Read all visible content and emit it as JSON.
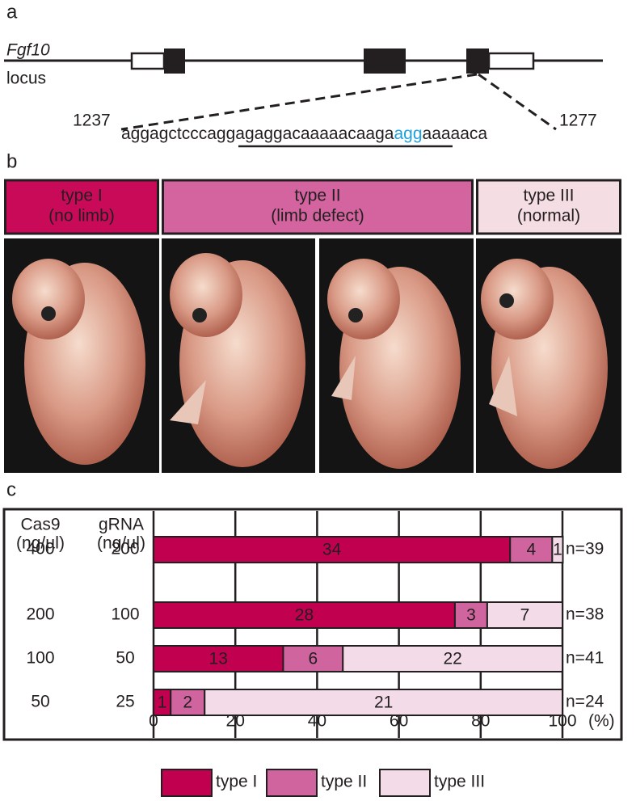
{
  "panel_labels": [
    "a",
    "b",
    "c"
  ],
  "panel_a": {
    "gene": "Fgf10",
    "locus": "locus",
    "start": "1237",
    "end": "1277",
    "sequence": {
      "prefix": "aggagctccca",
      "guide": "ggagaggacaaaaacaaga",
      "pam": "agg",
      "suffix": "aaaaaca"
    }
  },
  "panel_b": {
    "headers": [
      {
        "title": "type I",
        "subtitle": "(no limb)",
        "color": "#c80a58"
      },
      {
        "title": "type II",
        "subtitle": "(limb defect)",
        "color": "#d4649f"
      },
      {
        "title": "type III",
        "subtitle": "(normal)",
        "color": "#f5dde4"
      }
    ]
  },
  "chart_data": {
    "type": "bar",
    "orientation": "horizontal",
    "stacked": true,
    "column_headers": [
      {
        "name": "Cas9",
        "unit": "(ng/µl)"
      },
      {
        "name": "gRNA",
        "unit": "(ng/µl)"
      }
    ],
    "categories": [
      "400",
      "200",
      "100",
      "50"
    ],
    "categories2": [
      "200",
      "100",
      "50",
      "25"
    ],
    "series": [
      {
        "name": "type I",
        "color": "#c20050",
        "values": [
          87.2,
          73.7,
          31.7,
          4.2
        ],
        "counts": [
          34,
          28,
          13,
          1
        ]
      },
      {
        "name": "type II",
        "color": "#d0649e",
        "values": [
          10.3,
          7.9,
          14.6,
          8.3
        ],
        "counts": [
          4,
          3,
          6,
          2
        ]
      },
      {
        "name": "type III",
        "color": "#f3dce8",
        "values": [
          2.6,
          18.4,
          53.7,
          87.5
        ],
        "counts": [
          1,
          7,
          22,
          21
        ]
      }
    ],
    "totals": [
      "n=39",
      "n=38",
      "n=41",
      "n=24"
    ],
    "xlim": [
      0,
      100
    ],
    "xticks": [
      0,
      20,
      40,
      60,
      80,
      100
    ],
    "xlabel": "(%)",
    "grid": true
  }
}
